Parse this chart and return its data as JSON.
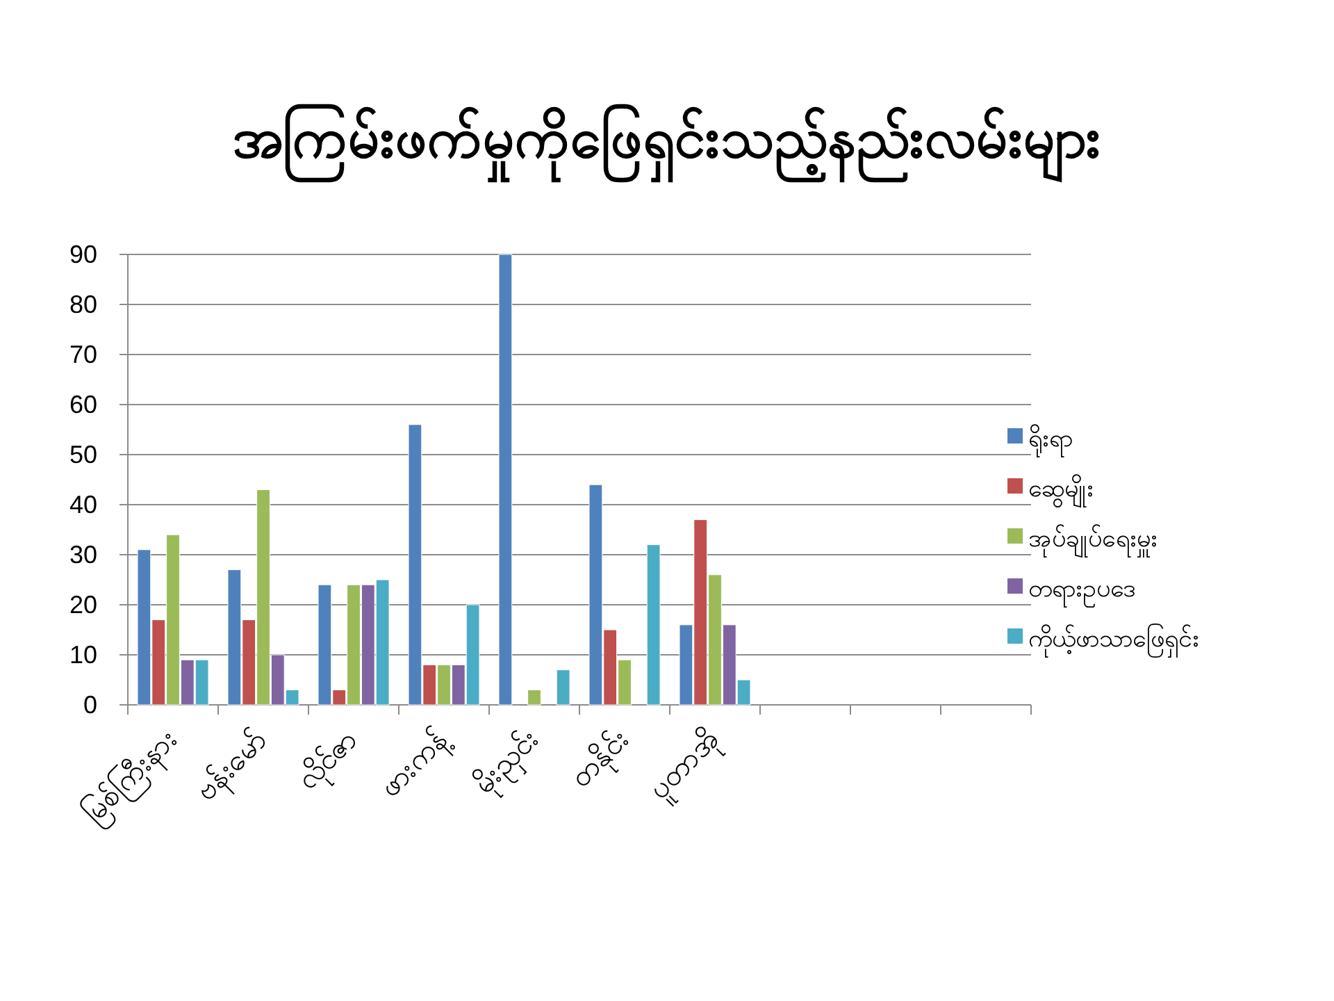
{
  "chart_data": {
    "type": "bar",
    "title": "အကြမ်းဖက်မှုကိုဖြေရှင်းသည့်နည်းလမ်းများ",
    "categories": [
      "မြစ်ကြီးနား",
      "ဗန်းမော်",
      "လိုင်ဇာ",
      "ဖားကန့်",
      "မိုးညှင်း",
      "တနိုင်း",
      "ပူတာအို",
      null,
      null,
      null
    ],
    "series": [
      {
        "name": "ရိုးရာ",
        "color": "#4f81bd",
        "values": [
          31,
          27,
          24,
          56,
          90,
          44,
          16,
          null,
          null,
          null
        ]
      },
      {
        "name": "ဆွေမျိုး",
        "color": "#c0504d",
        "values": [
          17,
          17,
          3,
          8,
          0,
          15,
          37,
          null,
          null,
          null
        ]
      },
      {
        "name": "အုပ်ချုပ်ရေးမှူး",
        "color": "#9bbb59",
        "values": [
          34,
          43,
          24,
          8,
          3,
          9,
          26,
          null,
          null,
          null
        ]
      },
      {
        "name": "တရားဥပဒေ",
        "color": "#8064a2",
        "values": [
          9,
          10,
          24,
          8,
          0,
          0,
          16,
          null,
          null,
          null
        ]
      },
      {
        "name": "ကိုယ့်ဖာသာဖြေရှင်း",
        "color": "#4bacc6",
        "values": [
          9,
          3,
          25,
          20,
          7,
          32,
          5,
          null,
          null,
          null
        ]
      }
    ],
    "ylim": [
      0,
      90
    ],
    "yticks": [
      0,
      10,
      20,
      30,
      40,
      50,
      60,
      70,
      80,
      90
    ],
    "grid": "y",
    "legend": "right"
  }
}
